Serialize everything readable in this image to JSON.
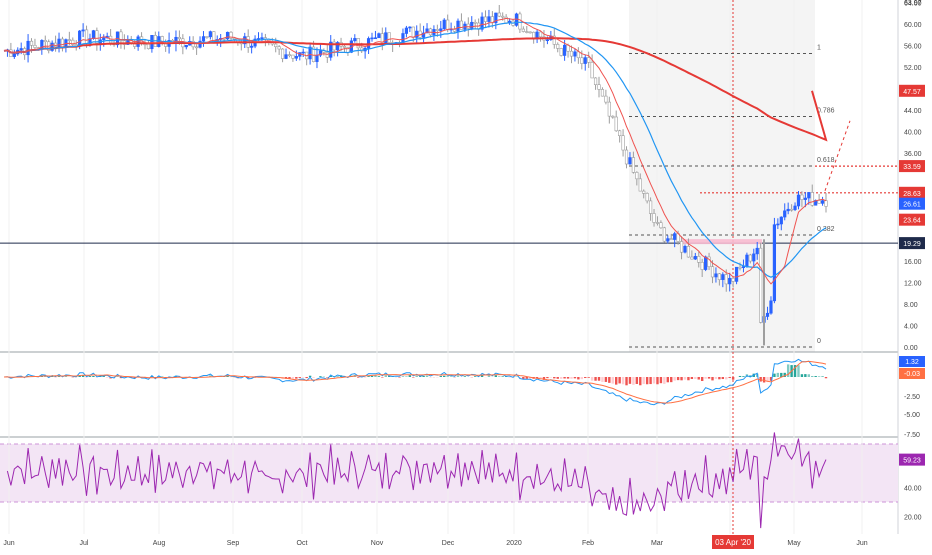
{
  "chart_data": {
    "type": "candlestick",
    "x_axis": {
      "months": [
        "Jun",
        "Jul",
        "Aug",
        "Sep",
        "Oct",
        "Nov",
        "Dec",
        "2020",
        "Feb",
        "Mar",
        "Apr",
        "May",
        "Jun"
      ],
      "crosshair_date": "03 Apr '20"
    },
    "price_panel": {
      "ylim": [
        0,
        63.5
      ],
      "ticks": [
        0.0,
        4.0,
        8.0,
        12.0,
        16.0,
        20.0,
        24.0,
        28.0,
        32.0,
        36.0,
        40.0,
        44.0,
        48.0,
        52.0,
        56.0,
        60.0,
        64.0
      ],
      "tick_labels": [
        "0.00",
        "4.00",
        "8.00",
        "12.00",
        "16.00",
        "",
        "",
        "",
        "",
        "36.00",
        "40.00",
        "44.00",
        "48.00",
        "52.00",
        "56.00",
        "60.00",
        "64.00"
      ],
      "fib_levels": [
        {
          "label": "1",
          "value": 54.5
        },
        {
          "label": "0.786",
          "value": 42.8
        },
        {
          "label": "0.618",
          "value": 33.6
        },
        {
          "label": "0.382",
          "value": 20.8
        },
        {
          "label": "0",
          "value": 0.0
        }
      ],
      "price_badges": [
        {
          "text": "47.57",
          "value": 47.57,
          "color": "#e53935"
        },
        {
          "text": "33.59",
          "value": 33.59,
          "color": "#e53935"
        },
        {
          "text": "28.63",
          "value": 28.63,
          "color": "#e53935"
        },
        {
          "text": "26.61",
          "value": 26.61,
          "color": "#2962ff"
        },
        {
          "text": "23.64",
          "value": 23.64,
          "color": "#e53935"
        },
        {
          "text": "19.29",
          "value": 19.29,
          "color": "#1e2a4a"
        }
      ],
      "horizontal_line": 19.29,
      "resistance_line": 28.63,
      "candles_monthly_close": [
        {
          "m": "Jun",
          "v": 55.0
        },
        {
          "m": "Jul",
          "v": 57.5
        },
        {
          "m": "Aug",
          "v": 56.5
        },
        {
          "m": "Sep",
          "v": 57.5
        },
        {
          "m": "Oct",
          "v": 54.0
        },
        {
          "m": "Nov",
          "v": 57.0
        },
        {
          "m": "Dec",
          "v": 60.0
        },
        {
          "m": "2020",
          "v": 61.0
        },
        {
          "m": "Feb",
          "v": 52.0
        },
        {
          "m": "Mar",
          "v": 22.0
        },
        {
          "m": "Apr",
          "v": 12.0
        },
        {
          "m": "May",
          "v": 27.5
        }
      ],
      "series": [
        {
          "name": "",
          "color": "#e53935",
          "kind": "ma200"
        },
        {
          "name": "",
          "color": "#2196f3",
          "kind": "ma50"
        },
        {
          "name": "",
          "color": "#ef5350",
          "kind": "ma20"
        }
      ]
    },
    "macd_panel": {
      "ticks": [
        -2.5,
        -5.0,
        -7.5
      ],
      "tick_labels": [
        "-2.50",
        "-5.00",
        "-7.50"
      ],
      "badges": [
        {
          "text": "1.32",
          "color": "#2962ff"
        },
        {
          "text": "-0.03",
          "color": "#ff7043"
        }
      ]
    },
    "rsi_panel": {
      "ylim": [
        10,
        85
      ],
      "band": [
        30,
        70
      ],
      "ticks": [
        20.0,
        40.0
      ],
      "tick_labels": [
        "20.00",
        "40.00"
      ],
      "badge": {
        "text": "59.23",
        "color": "#9c27b0"
      },
      "last_value": 59.23
    },
    "top_label": "63.97"
  }
}
